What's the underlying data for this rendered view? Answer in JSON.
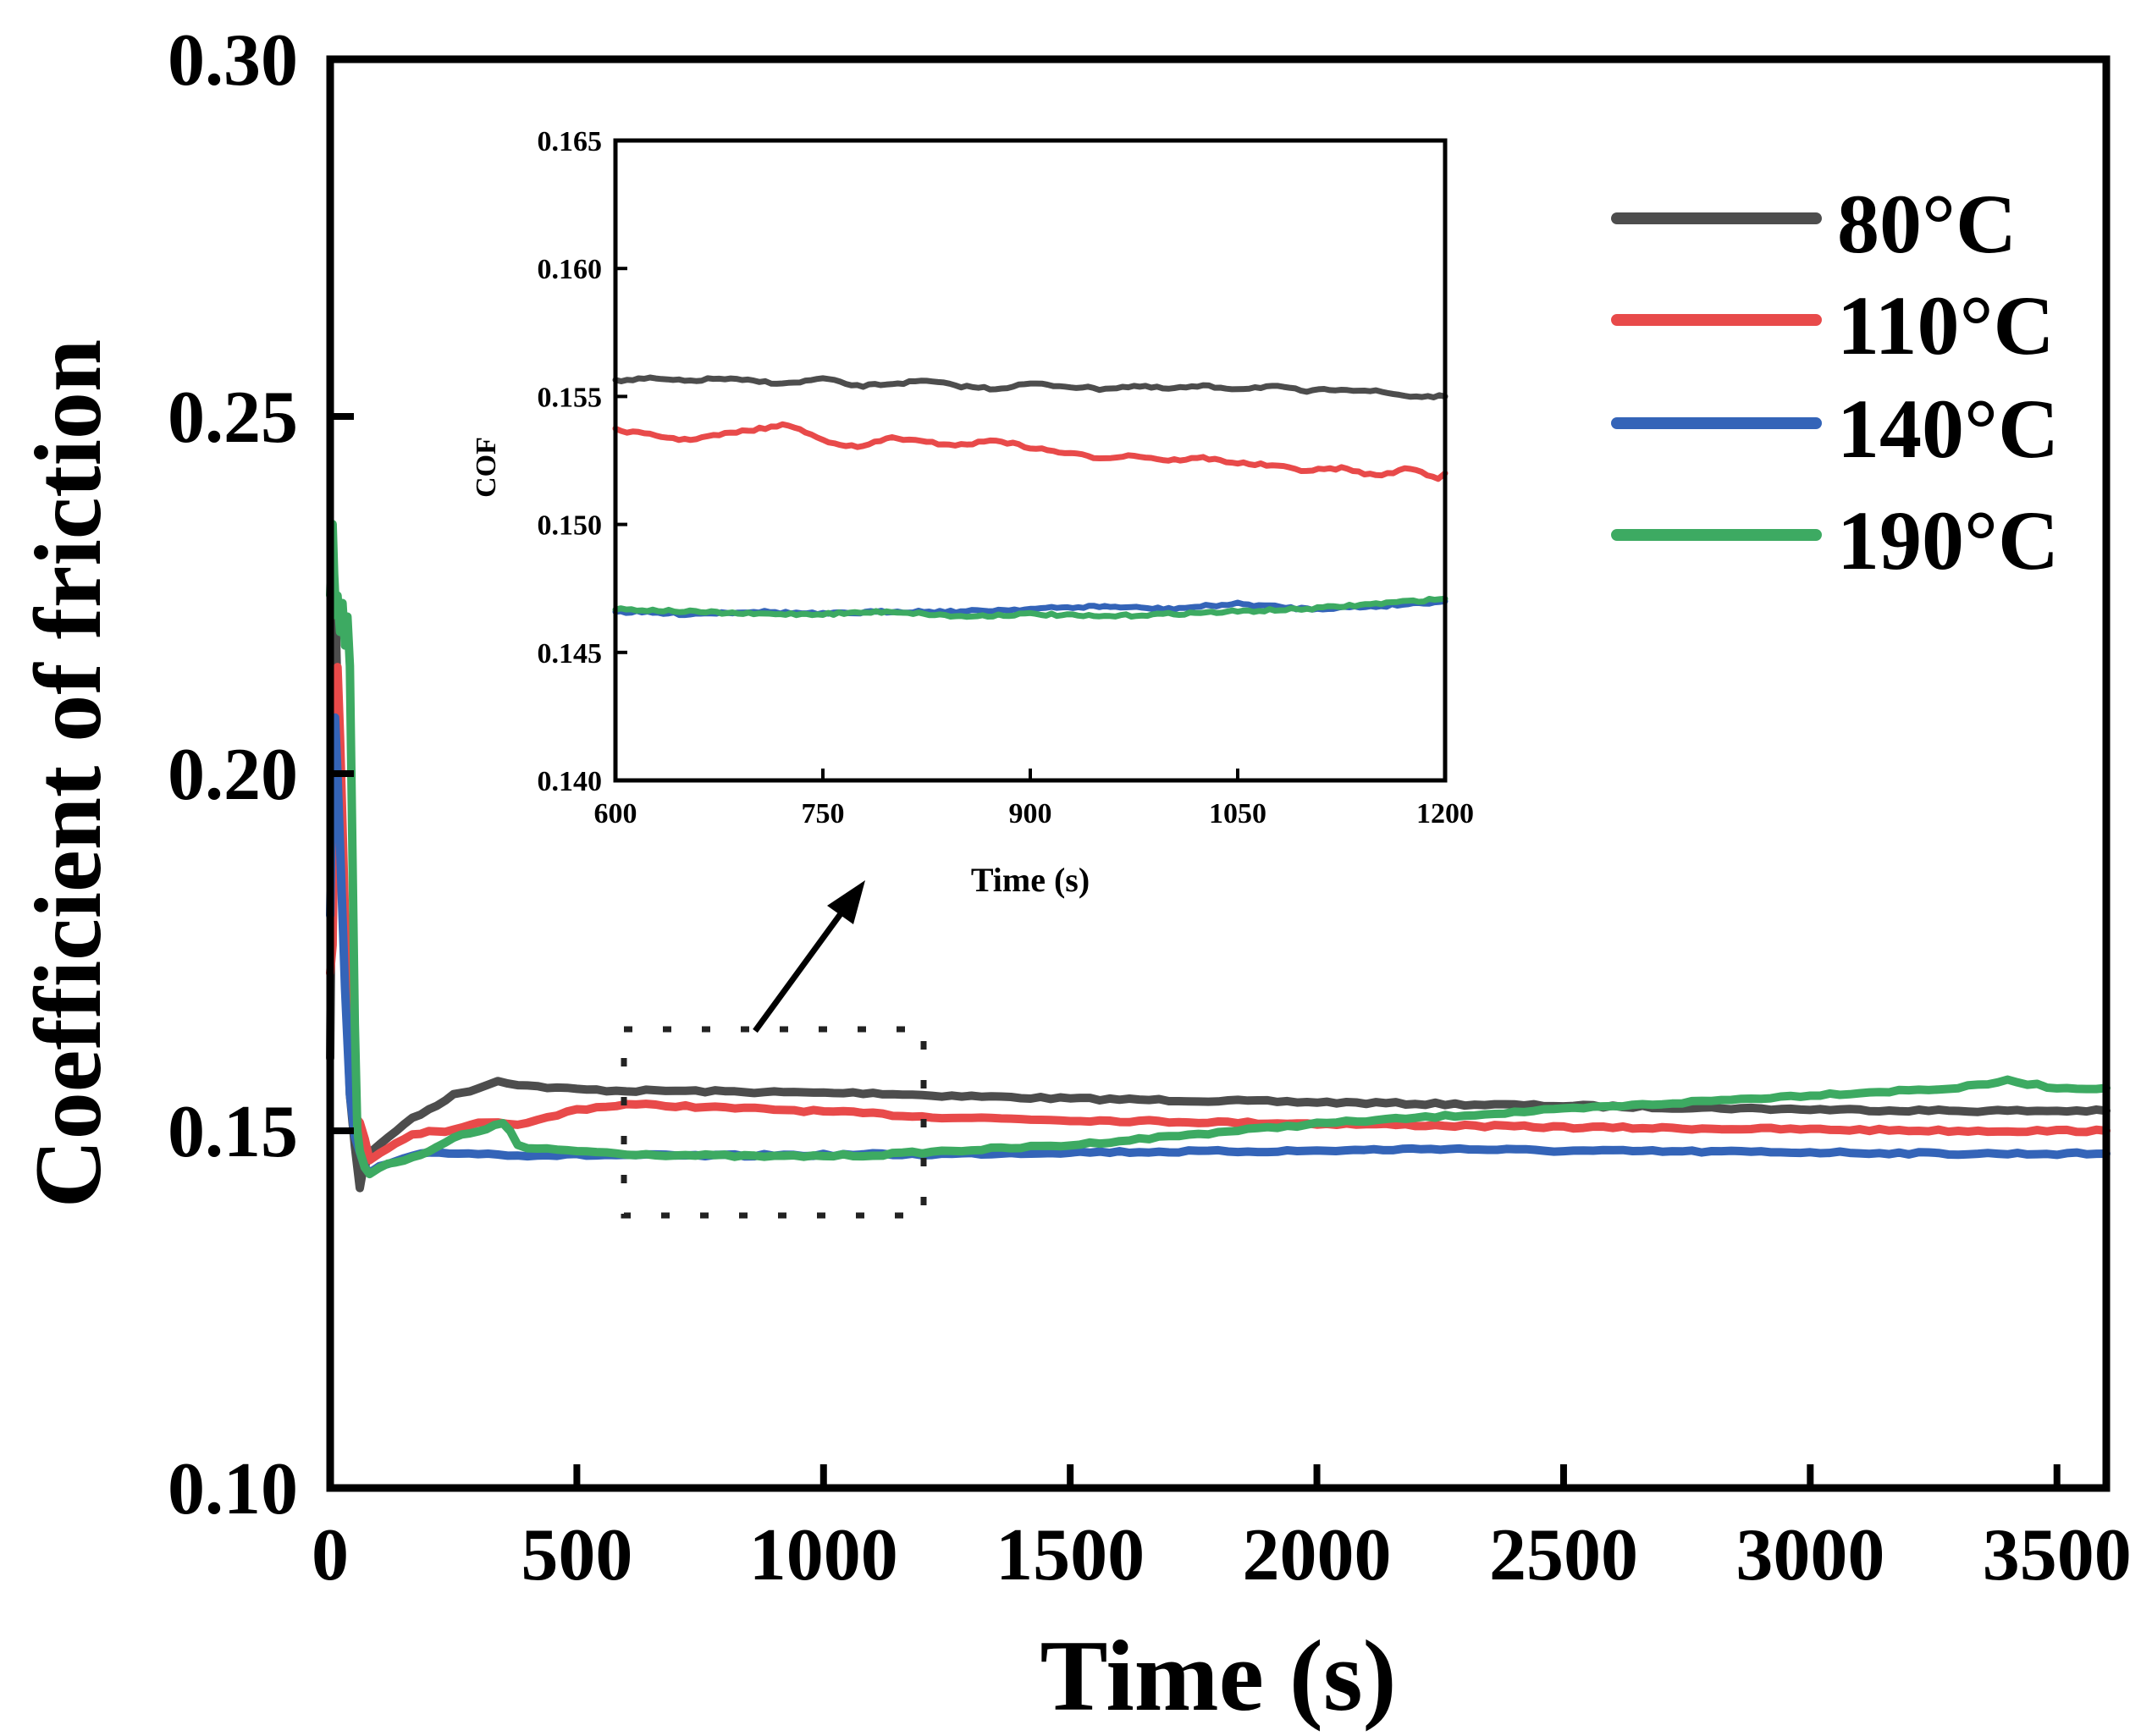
{
  "chart_data": [
    {
      "type": "line",
      "title": "",
      "xlabel": "Time (s)",
      "ylabel": "Coefficient of friction",
      "xlim": [
        0,
        3600
      ],
      "ylim": [
        0.1,
        0.3
      ],
      "xticks": [
        "0",
        "500",
        "1000",
        "1500",
        "2000",
        "2500",
        "3000",
        "3500"
      ],
      "yticks": [
        "0.10",
        "0.15",
        "0.20",
        "0.25",
        "0.30"
      ],
      "legend": [
        "80°C",
        "110°C",
        "140°C",
        "190°C"
      ],
      "legend_position": "top-right",
      "series": [
        {
          "name": "80°C",
          "color": "#4d4d4d",
          "x": [
            0,
            5,
            10,
            15,
            20,
            30,
            40,
            50,
            55,
            60,
            65,
            70,
            80,
            100,
            150,
            200,
            250,
            300,
            340,
            400,
            500,
            600,
            700,
            800,
            900,
            1000,
            1100,
            1200,
            1500,
            2000,
            2500,
            3000,
            3300,
            3600
          ],
          "y": [
            0.16,
            0.2,
            0.225,
            0.21,
            0.195,
            0.175,
            0.155,
            0.148,
            0.145,
            0.142,
            0.144,
            0.145,
            0.147,
            0.148,
            0.151,
            0.153,
            0.155,
            0.156,
            0.157,
            0.1563,
            0.1558,
            0.1556,
            0.1556,
            0.1555,
            0.1554,
            0.1553,
            0.1553,
            0.155,
            0.1545,
            0.154,
            0.1535,
            0.153,
            0.1528,
            0.1528
          ]
        },
        {
          "name": "110°C",
          "color": "#e84a4a",
          "x": [
            0,
            5,
            10,
            15,
            20,
            30,
            40,
            50,
            60,
            70,
            80,
            100,
            150,
            200,
            250,
            300,
            400,
            500,
            600,
            700,
            800,
            900,
            1000,
            1100,
            1200,
            1500,
            2000,
            2500,
            3000,
            3300,
            3600
          ],
          "y": [
            0.172,
            0.176,
            0.2,
            0.215,
            0.205,
            0.18,
            0.16,
            0.152,
            0.151,
            0.149,
            0.146,
            0.147,
            0.149,
            0.15,
            0.15,
            0.151,
            0.151,
            0.153,
            0.1537,
            0.1535,
            0.1532,
            0.153,
            0.1527,
            0.1524,
            0.152,
            0.1515,
            0.151,
            0.1505,
            0.1502,
            0.15,
            0.15
          ]
        },
        {
          "name": "140°C",
          "color": "#3464b8",
          "x": [
            0,
            5,
            10,
            15,
            20,
            30,
            40,
            50,
            60,
            70,
            80,
            100,
            150,
            200,
            300,
            400,
            500,
            600,
            700,
            800,
            900,
            1000,
            1100,
            1200,
            1500,
            2000,
            2250,
            2500,
            3000,
            3300,
            3600
          ],
          "y": [
            0.18,
            0.2,
            0.208,
            0.2,
            0.19,
            0.17,
            0.155,
            0.149,
            0.147,
            0.145,
            0.144,
            0.145,
            0.146,
            0.147,
            0.1468,
            0.1466,
            0.1466,
            0.1466,
            0.1465,
            0.1465,
            0.1466,
            0.1466,
            0.1467,
            0.1467,
            0.147,
            0.1472,
            0.1475,
            0.1472,
            0.147,
            0.1468,
            0.1468
          ]
        },
        {
          "name": "190°C",
          "color": "#3daa62",
          "x": [
            0,
            5,
            8,
            12,
            15,
            20,
            25,
            30,
            35,
            40,
            45,
            50,
            55,
            60,
            70,
            80,
            100,
            150,
            200,
            250,
            300,
            350,
            365,
            380,
            400,
            500,
            600,
            700,
            800,
            900,
            1000,
            1100,
            1200,
            1500,
            2000,
            2500,
            3000,
            3300,
            3400,
            3500,
            3600
          ],
          "y": [
            0.225,
            0.235,
            0.228,
            0.222,
            0.225,
            0.22,
            0.224,
            0.218,
            0.222,
            0.215,
            0.19,
            0.165,
            0.15,
            0.147,
            0.145,
            0.144,
            0.145,
            0.146,
            0.147,
            0.149,
            0.15,
            0.151,
            0.15,
            0.148,
            0.1475,
            0.1472,
            0.1468,
            0.1466,
            0.1465,
            0.1464,
            0.1465,
            0.1466,
            0.147,
            0.148,
            0.151,
            0.153,
            0.155,
            0.156,
            0.157,
            0.156,
            0.156
          ]
        }
      ]
    },
    {
      "type": "line",
      "title": "",
      "xlabel": "Time (s)",
      "ylabel": "COF",
      "xlim": [
        600,
        1200
      ],
      "ylim": [
        0.14,
        0.165
      ],
      "xticks": [
        "600",
        "750",
        "900",
        "1050",
        "1200"
      ],
      "yticks": [
        "0.140",
        "0.145",
        "0.150",
        "0.155",
        "0.160",
        "0.165"
      ],
      "series": [
        {
          "name": "80°C",
          "color": "#4d4d4d",
          "x": [
            600,
            625,
            650,
            675,
            700,
            725,
            750,
            775,
            800,
            825,
            850,
            875,
            900,
            925,
            950,
            975,
            1000,
            1025,
            1050,
            1075,
            1100,
            1125,
            1150,
            1175,
            1200
          ],
          "y": [
            0.1556,
            0.1557,
            0.1556,
            0.1557,
            0.1556,
            0.1555,
            0.1557,
            0.1554,
            0.1555,
            0.1556,
            0.1554,
            0.1553,
            0.1555,
            0.1554,
            0.1553,
            0.1554,
            0.1553,
            0.1554,
            0.1553,
            0.1554,
            0.1552,
            0.1553,
            0.1552,
            0.155,
            0.155
          ]
        },
        {
          "name": "110°C",
          "color": "#e84a4a",
          "x": [
            600,
            625,
            650,
            675,
            700,
            725,
            750,
            775,
            800,
            825,
            850,
            875,
            900,
            925,
            950,
            975,
            1000,
            1025,
            1050,
            1075,
            1100,
            1125,
            1150,
            1175,
            1195,
            1200
          ],
          "y": [
            0.1537,
            0.1535,
            0.1533,
            0.1535,
            0.1537,
            0.1539,
            0.1533,
            0.153,
            0.1534,
            0.1532,
            0.1531,
            0.1533,
            0.153,
            0.1528,
            0.1526,
            0.1527,
            0.1525,
            0.1526,
            0.1524,
            0.1523,
            0.1521,
            0.1522,
            0.1519,
            0.1522,
            0.1518,
            0.152
          ]
        },
        {
          "name": "140°C",
          "color": "#3464b8",
          "x": [
            600,
            650,
            700,
            750,
            800,
            850,
            900,
            950,
            1000,
            1050,
            1100,
            1150,
            1200
          ],
          "y": [
            0.1466,
            0.1465,
            0.1466,
            0.1465,
            0.1466,
            0.1466,
            0.1467,
            0.1468,
            0.1467,
            0.1469,
            0.1467,
            0.1468,
            0.147
          ]
        },
        {
          "name": "190°C",
          "color": "#3daa62",
          "x": [
            600,
            650,
            700,
            750,
            800,
            850,
            900,
            950,
            1000,
            1050,
            1100,
            1150,
            1200
          ],
          "y": [
            0.1467,
            0.1466,
            0.1465,
            0.1465,
            0.1466,
            0.1464,
            0.1465,
            0.1464,
            0.1465,
            0.1466,
            0.1467,
            0.1469,
            0.1471
          ]
        }
      ]
    }
  ]
}
